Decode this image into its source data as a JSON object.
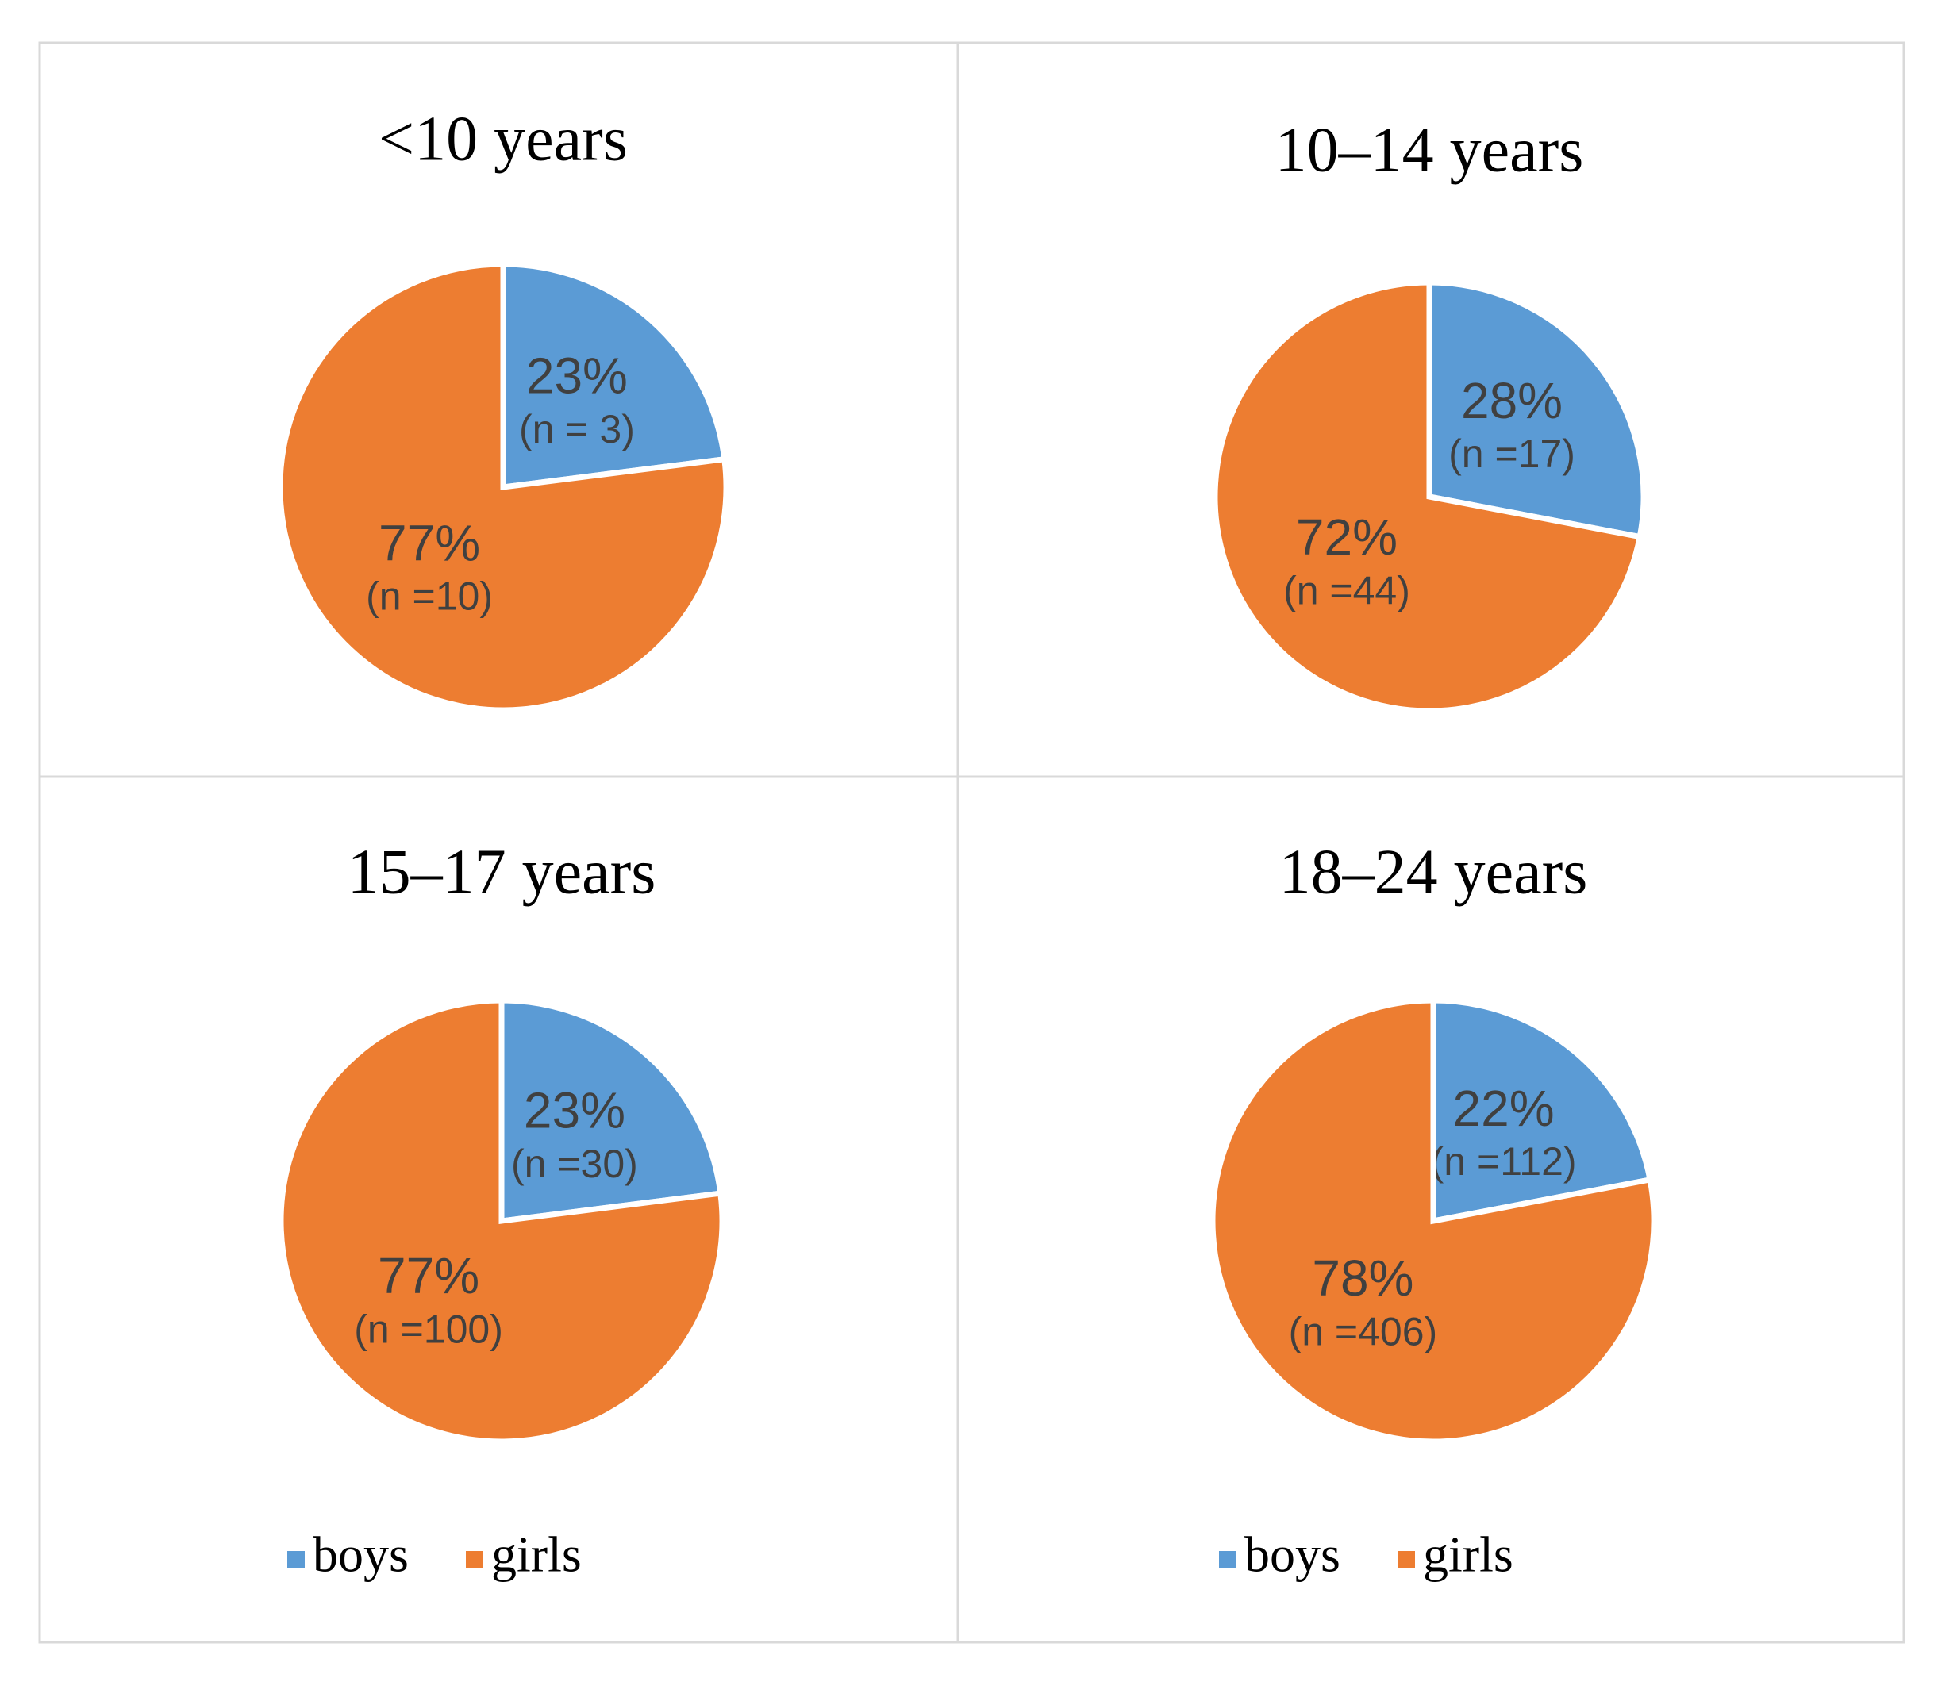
{
  "chart_data": [
    {
      "type": "pie",
      "title": "<10 years",
      "categories": [
        "boys",
        "girls"
      ],
      "values": [
        23,
        77
      ],
      "value_labels": [
        "23%",
        "77%"
      ],
      "counts": [
        3,
        10
      ],
      "count_labels": [
        "(n = 3)",
        "(n =10)"
      ],
      "colors": [
        "#5b9bd5",
        "#ed7d31"
      ],
      "legend": false
    },
    {
      "type": "pie",
      "title": "10–14 years",
      "categories": [
        "boys",
        "girls"
      ],
      "values": [
        28,
        72
      ],
      "value_labels": [
        "28%",
        "72%"
      ],
      "counts": [
        17,
        44
      ],
      "count_labels": [
        "(n =17)",
        "(n =44)"
      ],
      "colors": [
        "#5b9bd5",
        "#ed7d31"
      ],
      "legend": false
    },
    {
      "type": "pie",
      "title": "15–17 years",
      "categories": [
        "boys",
        "girls"
      ],
      "values": [
        23,
        77
      ],
      "value_labels": [
        "23%",
        "77%"
      ],
      "counts": [
        30,
        100
      ],
      "count_labels": [
        "(n =30)",
        "(n =100)"
      ],
      "colors": [
        "#5b9bd5",
        "#ed7d31"
      ],
      "legend": true
    },
    {
      "type": "pie",
      "title": "18–24 years",
      "categories": [
        "boys",
        "girls"
      ],
      "values": [
        22,
        78
      ],
      "value_labels": [
        "22%",
        "78%"
      ],
      "counts": [
        112,
        406
      ],
      "count_labels": [
        "(n =112)",
        "(n =406)"
      ],
      "colors": [
        "#5b9bd5",
        "#ed7d31"
      ],
      "legend": true
    }
  ]
}
